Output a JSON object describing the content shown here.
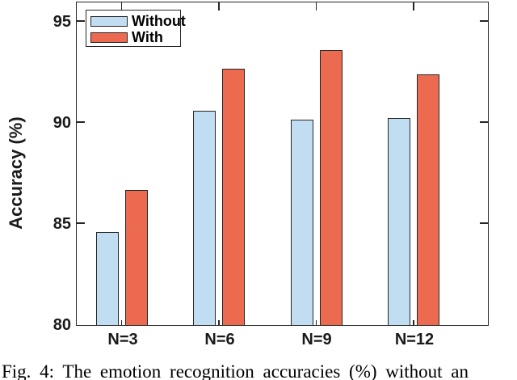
{
  "figure": {
    "caption": "Fig. 4: The emotion recognition accuracies (%) without an"
  },
  "chart_data": {
    "type": "bar",
    "title": "",
    "categories": [
      "N=3",
      "N=6",
      "N=9",
      "N=12"
    ],
    "series": [
      {
        "name": "Without",
        "color": "#C1DDF1",
        "values": [
          84.6,
          90.6,
          90.15,
          90.25
        ]
      },
      {
        "name": "With",
        "color": "#EC6A50",
        "values": [
          86.7,
          92.7,
          93.6,
          92.4
        ]
      }
    ],
    "xlabel": "",
    "ylabel": "Accuracy (%)",
    "ylim": [
      80,
      96
    ],
    "yticks": [
      80,
      85,
      90,
      95
    ],
    "grid": false,
    "legend_position": "top-left-inside",
    "bar_edge_color": "#262626",
    "axis_color": "#262626",
    "tick_direction": "in"
  }
}
